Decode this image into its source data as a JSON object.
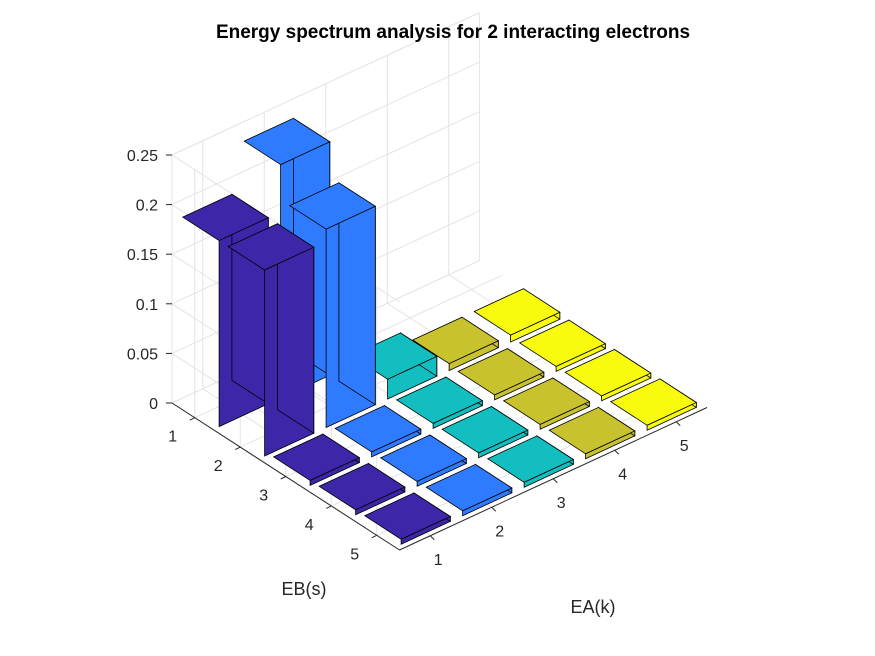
{
  "chart_data": {
    "type": "bar3",
    "title": "Energy spectrum analysis for 2 interacting electrons",
    "xlabel": "EA(k)",
    "ylabel": "EB(s)",
    "zlabel": "",
    "x_categories": [
      "1",
      "2",
      "3",
      "4",
      "5"
    ],
    "y_categories": [
      "1",
      "2",
      "3",
      "4",
      "5"
    ],
    "zlim": [
      0,
      0.25
    ],
    "z_ticks": [
      "0",
      "0.05",
      "0.1",
      "0.15",
      "0.2",
      "0.25"
    ],
    "grid": true,
    "colormap": [
      "#3e26a8",
      "#2f7bff",
      "#12bebf",
      "#c8c22e",
      "#f9fb0e"
    ],
    "values": [
      [
        0.1875,
        0.2354,
        0.0,
        0.0,
        0.0
      ],
      [
        0.1875,
        0.2,
        0.02,
        0.007,
        0.007
      ],
      [
        0.005,
        0.005,
        0.005,
        0.005,
        0.005
      ],
      [
        0.005,
        0.005,
        0.005,
        0.005,
        0.005
      ],
      [
        0.005,
        0.005,
        0.005,
        0.005,
        0.005
      ]
    ]
  }
}
